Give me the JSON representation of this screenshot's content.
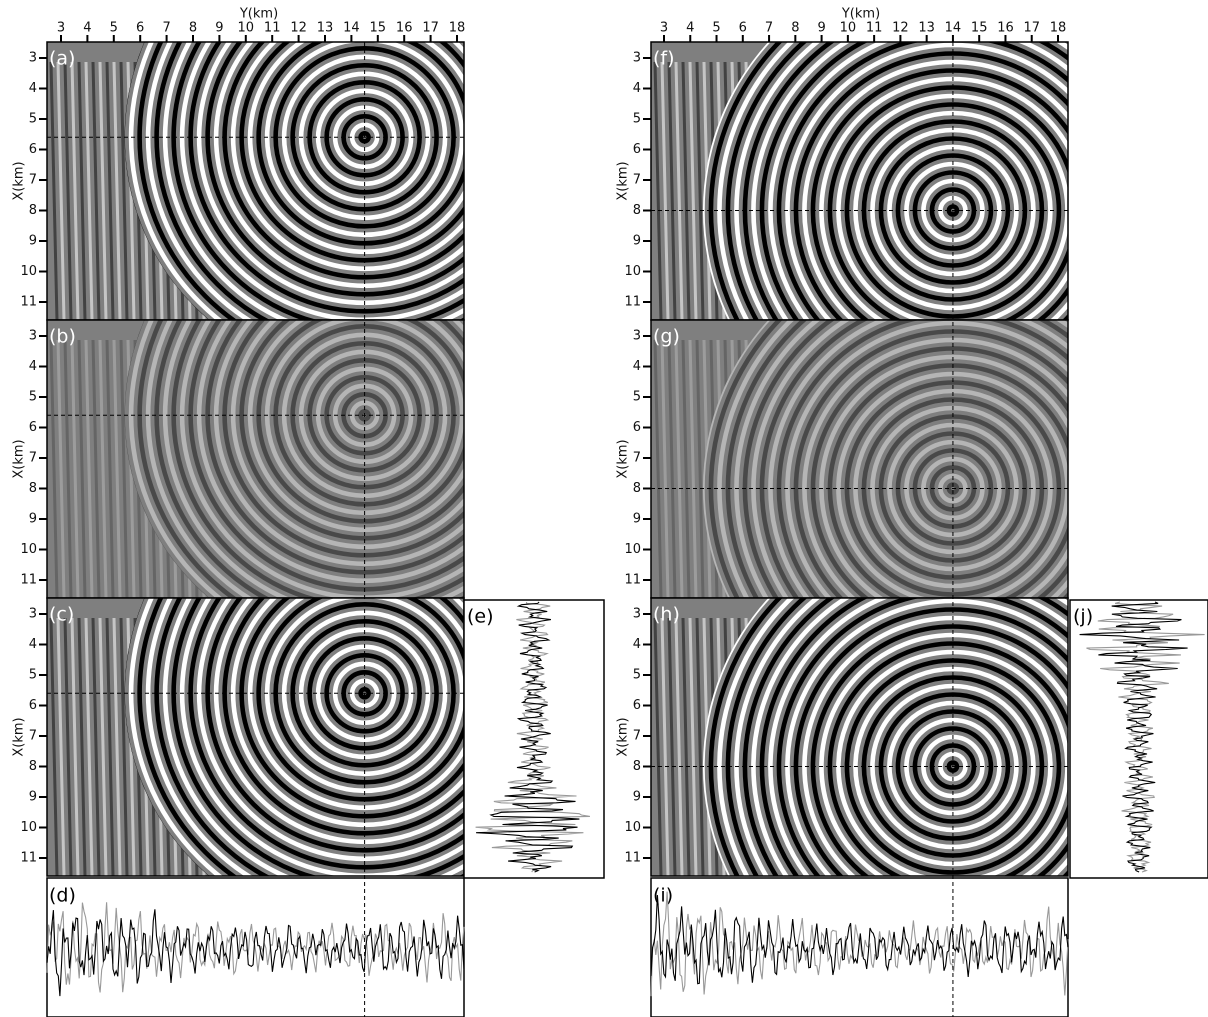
{
  "left": {
    "top_axis_label": "Y(km)",
    "side_axis_label": "X(km)",
    "yticks": [
      3,
      4,
      5,
      6,
      7,
      8,
      9,
      10,
      11,
      12,
      13,
      14,
      15,
      16,
      17,
      18
    ],
    "xticks": [
      3,
      4,
      5,
      6,
      7,
      8,
      9,
      10,
      11
    ],
    "source": {
      "y": 14.5,
      "x": 5.6
    },
    "panels": [
      "(a)",
      "(b)",
      "(c)"
    ],
    "trace_horizontal": "(d)",
    "trace_vertical": "(e)"
  },
  "right": {
    "top_axis_label": "Y(km)",
    "side_axis_label": "X(km)",
    "yticks": [
      3,
      4,
      5,
      6,
      7,
      8,
      9,
      10,
      11,
      12,
      13,
      14,
      15,
      16,
      17,
      18
    ],
    "xticks": [
      3,
      4,
      5,
      6,
      7,
      8,
      9,
      10,
      11
    ],
    "source": {
      "y": 14,
      "x": 8
    },
    "panels": [
      "(f)",
      "(g)",
      "(h)"
    ],
    "trace_horizontal": "(i)",
    "trace_vertical": "(j)"
  }
}
